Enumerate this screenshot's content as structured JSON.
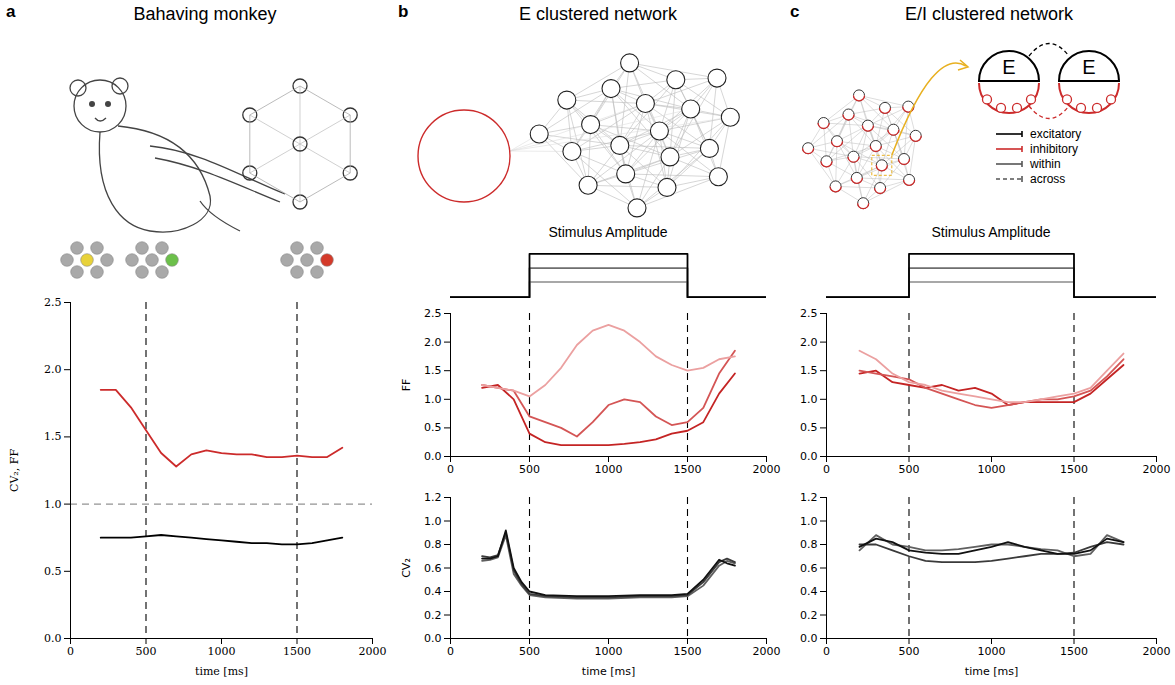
{
  "panels": [
    {
      "letter": "a",
      "title": "Bahaving monkey"
    },
    {
      "letter": "b",
      "title": "E clustered network"
    },
    {
      "letter": "c",
      "title": "E/I clustered network",
      "node_labels": [
        "E",
        "E"
      ],
      "key": [
        {
          "text": "excitatory",
          "color": "#000000",
          "line_style": "solid"
        },
        {
          "text": "inhibitory",
          "color": "#cc2b2b",
          "line_style": "solid"
        },
        {
          "text": "within",
          "color": "#555555",
          "line_style": "solid"
        },
        {
          "text": "across",
          "color": "#555555",
          "line_style": "dashed"
        }
      ]
    }
  ],
  "chart_data": [
    {
      "type": "line",
      "xlabel": "time [ms]",
      "ylabel": "CV₂, FF",
      "x": [
        200,
        300,
        400,
        500,
        600,
        700,
        800,
        900,
        1000,
        1100,
        1200,
        1300,
        1400,
        1500,
        1600,
        1700,
        1800
      ],
      "series": [
        {
          "color": "#cc2b2b",
          "values": [
            1.85,
            1.85,
            1.72,
            1.55,
            1.38,
            1.28,
            1.37,
            1.4,
            1.38,
            1.37,
            1.37,
            1.35,
            1.35,
            1.36,
            1.35,
            1.35,
            1.42
          ]
        },
        {
          "color": "#000000",
          "values": [
            0.75,
            0.75,
            0.75,
            0.76,
            0.77,
            0.76,
            0.75,
            0.74,
            0.73,
            0.72,
            0.71,
            0.71,
            0.7,
            0.7,
            0.71,
            0.73,
            0.75
          ]
        }
      ],
      "xlim": [
        0,
        2000
      ],
      "xticks": [
        0,
        500,
        1000,
        1500,
        2000
      ],
      "ylim": [
        0,
        2.5
      ],
      "yticks": [
        {
          "value": 0,
          "label": "0.0"
        },
        0.5,
        {
          "value": 1,
          "label": "1.0"
        },
        1.5,
        {
          "value": 2,
          "label": "2.0"
        },
        2.5
      ],
      "vlines": [
        500,
        1500
      ],
      "hlines": [
        1
      ],
      "grid": false
    },
    {
      "type": "line",
      "title": "Stimulus Amplitude",
      "x": [
        0,
        500,
        500,
        1500,
        1500,
        2000
      ],
      "series": [
        {
          "color": "#000000",
          "values": [
            0,
            0,
            1,
            1,
            0,
            0
          ]
        },
        {
          "color": "#6e6e6e",
          "values": [
            0,
            0,
            0.67,
            0.67,
            0,
            0
          ]
        },
        {
          "color": "#a8a8a8",
          "values": [
            0,
            0,
            0.35,
            0.35,
            0,
            0
          ]
        }
      ],
      "xlim": [
        0,
        2000
      ],
      "ylim": [
        -0.1,
        1.1
      ],
      "tick_labels": false,
      "grid": false
    },
    {
      "type": "line",
      "ylabel": "FF",
      "x": [
        200,
        300,
        400,
        500,
        600,
        700,
        800,
        900,
        1000,
        1100,
        1200,
        1300,
        1400,
        1500,
        1600,
        1700,
        1800
      ],
      "series": [
        {
          "color": "#eba0a0",
          "values": [
            1.25,
            1.2,
            1.15,
            1.05,
            1.25,
            1.55,
            1.95,
            2.2,
            2.3,
            2.2,
            2.0,
            1.75,
            1.6,
            1.5,
            1.55,
            1.7,
            1.75
          ]
        },
        {
          "color": "#d45555",
          "values": [
            1.25,
            1.2,
            1.15,
            0.7,
            0.6,
            0.5,
            0.35,
            0.6,
            0.9,
            1.0,
            0.95,
            0.7,
            0.55,
            0.6,
            0.85,
            1.45,
            1.85
          ]
        },
        {
          "color": "#c42424",
          "values": [
            1.2,
            1.25,
            1.0,
            0.4,
            0.25,
            0.2,
            0.2,
            0.2,
            0.2,
            0.22,
            0.25,
            0.3,
            0.4,
            0.45,
            0.6,
            1.1,
            1.45
          ]
        }
      ],
      "xlim": [
        0,
        2000
      ],
      "xticks": [
        0,
        500,
        1000,
        1500,
        2000
      ],
      "ylim": [
        0,
        2.5
      ],
      "yticks": [
        {
          "value": 0,
          "label": "0.0"
        },
        0.5,
        {
          "value": 1,
          "label": "1.0"
        },
        1.5,
        {
          "value": 2,
          "label": "2.0"
        },
        2.5
      ],
      "vlines": [
        500,
        1500
      ],
      "grid": false
    },
    {
      "type": "line",
      "xlabel": "time [ms]",
      "ylabel": "CV₂",
      "x": [
        200,
        250,
        300,
        350,
        400,
        450,
        500,
        600,
        800,
        1000,
        1200,
        1400,
        1500,
        1600,
        1700,
        1750,
        1800
      ],
      "series": [
        {
          "color": "#111111",
          "values": [
            0.68,
            0.68,
            0.7,
            0.92,
            0.6,
            0.48,
            0.4,
            0.37,
            0.36,
            0.36,
            0.37,
            0.37,
            0.38,
            0.5,
            0.67,
            0.64,
            0.62
          ]
        },
        {
          "color": "#3a3a3a",
          "values": [
            0.7,
            0.69,
            0.71,
            0.9,
            0.58,
            0.46,
            0.38,
            0.36,
            0.35,
            0.35,
            0.36,
            0.36,
            0.37,
            0.48,
            0.65,
            0.68,
            0.65
          ]
        },
        {
          "color": "#606060",
          "values": [
            0.66,
            0.67,
            0.69,
            0.88,
            0.55,
            0.45,
            0.37,
            0.35,
            0.34,
            0.34,
            0.35,
            0.35,
            0.36,
            0.45,
            0.62,
            0.66,
            0.64
          ]
        }
      ],
      "xlim": [
        0,
        2000
      ],
      "xticks": [
        0,
        500,
        1000,
        1500,
        2000
      ],
      "ylim": [
        0,
        1.2
      ],
      "yticks": [
        {
          "value": 0,
          "label": "0.0"
        },
        0.2,
        0.4,
        0.6,
        0.8,
        {
          "value": 1,
          "label": "1.0"
        },
        1.2
      ],
      "vlines": [
        500,
        1500
      ],
      "grid": false
    },
    {
      "type": "line",
      "title": "Stimulus Amplitude",
      "x": [
        0,
        500,
        500,
        1500,
        1500,
        2000
      ],
      "series": [
        {
          "color": "#000000",
          "values": [
            0,
            0,
            1,
            1,
            0,
            0
          ]
        },
        {
          "color": "#6e6e6e",
          "values": [
            0,
            0,
            0.67,
            0.67,
            0,
            0
          ]
        },
        {
          "color": "#a8a8a8",
          "values": [
            0,
            0,
            0.35,
            0.35,
            0,
            0
          ]
        }
      ],
      "xlim": [
        0,
        2000
      ],
      "ylim": [
        -0.1,
        1.1
      ],
      "tick_labels": false,
      "grid": false
    },
    {
      "type": "line",
      "x": [
        200,
        300,
        400,
        500,
        600,
        700,
        800,
        900,
        1000,
        1100,
        1200,
        1300,
        1400,
        1500,
        1600,
        1700,
        1800
      ],
      "series": [
        {
          "color": "#eba0a0",
          "values": [
            1.85,
            1.7,
            1.45,
            1.3,
            1.25,
            1.15,
            1.1,
            1.05,
            1.0,
            0.95,
            0.95,
            1.0,
            1.05,
            1.1,
            1.2,
            1.5,
            1.8
          ]
        },
        {
          "color": "#d45555",
          "values": [
            1.5,
            1.45,
            1.4,
            1.35,
            1.2,
            1.1,
            1.0,
            0.9,
            0.85,
            0.9,
            0.95,
            1.0,
            1.0,
            1.05,
            1.15,
            1.4,
            1.7
          ]
        },
        {
          "color": "#c42424",
          "values": [
            1.45,
            1.5,
            1.3,
            1.25,
            1.2,
            1.25,
            1.15,
            1.2,
            1.1,
            0.9,
            0.95,
            0.95,
            0.95,
            0.95,
            1.1,
            1.35,
            1.6
          ]
        }
      ],
      "xlim": [
        0,
        2000
      ],
      "xticks": [
        0,
        500,
        1000,
        1500,
        2000
      ],
      "ylim": [
        0,
        2.5
      ],
      "yticks": [
        {
          "value": 0,
          "label": "0.0"
        },
        0.5,
        {
          "value": 1,
          "label": "1.0"
        },
        1.5,
        {
          "value": 2,
          "label": "2.0"
        },
        2.5
      ],
      "vlines": [
        500,
        1500
      ],
      "grid": false
    },
    {
      "type": "line",
      "xlabel": "time [ms]",
      "x": [
        200,
        300,
        400,
        500,
        600,
        700,
        800,
        900,
        1000,
        1100,
        1200,
        1300,
        1400,
        1500,
        1600,
        1700,
        1800
      ],
      "series": [
        {
          "color": "#111111",
          "values": [
            0.78,
            0.85,
            0.82,
            0.75,
            0.73,
            0.72,
            0.72,
            0.75,
            0.78,
            0.82,
            0.78,
            0.75,
            0.72,
            0.72,
            0.75,
            0.85,
            0.82
          ]
        },
        {
          "color": "#3a3a3a",
          "values": [
            0.8,
            0.8,
            0.75,
            0.7,
            0.66,
            0.65,
            0.65,
            0.65,
            0.66,
            0.68,
            0.7,
            0.72,
            0.72,
            0.73,
            0.78,
            0.82,
            0.8
          ]
        },
        {
          "color": "#606060",
          "values": [
            0.75,
            0.88,
            0.8,
            0.78,
            0.75,
            0.75,
            0.76,
            0.78,
            0.8,
            0.8,
            0.78,
            0.76,
            0.75,
            0.7,
            0.72,
            0.88,
            0.82
          ]
        }
      ],
      "xlim": [
        0,
        2000
      ],
      "xticks": [
        0,
        500,
        1000,
        1500,
        2000
      ],
      "ylim": [
        0,
        1.2
      ],
      "yticks": [
        {
          "value": 0,
          "label": "0.0"
        },
        0.2,
        0.4,
        0.6,
        0.8,
        {
          "value": 1,
          "label": "1.0"
        },
        1.2
      ],
      "vlines": [
        500,
        1500
      ],
      "grid": false
    }
  ]
}
